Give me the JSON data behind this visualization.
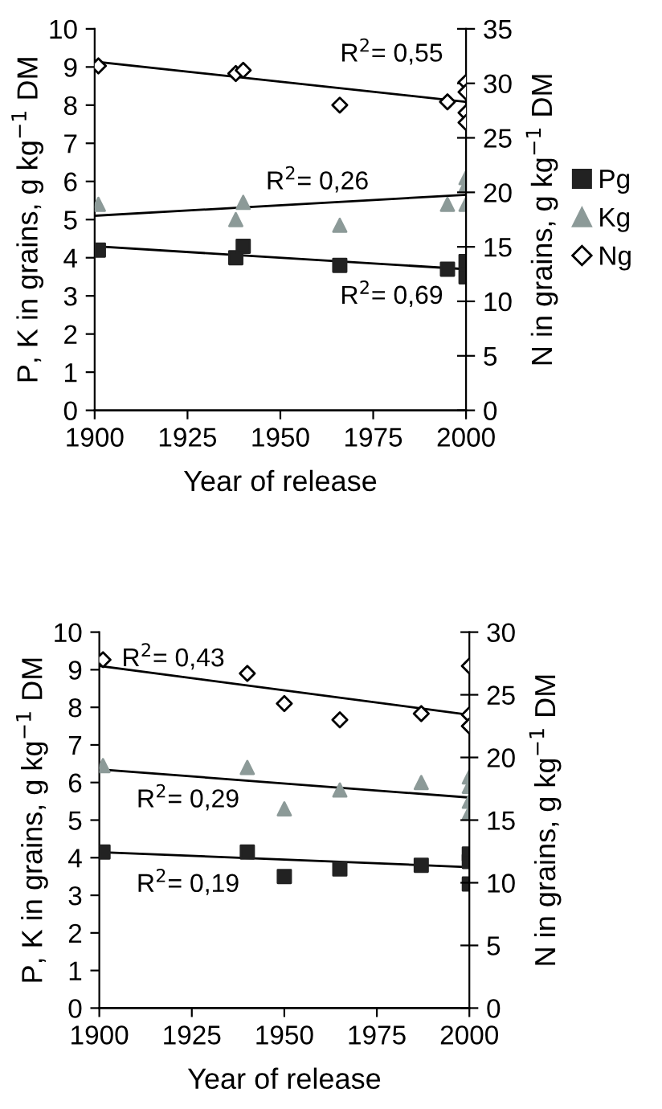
{
  "chart_data": [
    {
      "type": "scatter",
      "xlabel": "Year of release",
      "ylabel": "P, K in grains, g kg$^{−1}$ DM",
      "y2label": "N in grains, g kg$^{−1}$ DM",
      "xlim": [
        1900,
        2000
      ],
      "xticks": [
        1900,
        1925,
        1950,
        1975,
        2000
      ],
      "ylim": [
        0,
        10
      ],
      "yticks": [
        0,
        1,
        2,
        3,
        4,
        5,
        6,
        7,
        8,
        9,
        10
      ],
      "y2lim": [
        0,
        35
      ],
      "y2ticks": [
        0,
        5,
        10,
        15,
        20,
        25,
        30,
        35
      ],
      "grid": false,
      "legend": "right",
      "series": [
        {
          "name": "Pg",
          "color": "#222222",
          "marker": "square",
          "x": [
            1901,
            1938,
            1940,
            1966,
            1995,
            2000,
            2000
          ],
          "values": [
            4.2,
            4.0,
            4.3,
            3.8,
            3.7,
            3.9,
            3.5
          ]
        },
        {
          "name": "Kg",
          "color": "#8c9a98",
          "marker": "triangle",
          "x": [
            1901,
            1938,
            1940,
            1966,
            1995,
            2000,
            2000,
            2000
          ],
          "values": [
            5.4,
            5.0,
            5.45,
            4.85,
            5.4,
            6.1,
            5.9,
            5.4
          ]
        },
        {
          "name": "Ng",
          "color": "#000000",
          "marker": "diamond",
          "axis": "y2",
          "x": [
            1901,
            1938,
            1940,
            1966,
            1995,
            2000,
            2000,
            2000,
            2000
          ],
          "values": [
            31.6,
            30.9,
            31.2,
            28.0,
            28.3,
            30.1,
            29.2,
            27.3,
            26.4
          ]
        },
        {
          "type": "line",
          "color": "#000000",
          "marker": "none",
          "x": [
            1900,
            2000
          ],
          "values": [
            4.3,
            3.7
          ]
        },
        {
          "type": "line",
          "color": "#000000",
          "marker": "none",
          "x": [
            1900,
            2000
          ],
          "values": [
            5.1,
            5.65
          ]
        },
        {
          "type": "line",
          "color": "#000000",
          "marker": "none",
          "axis": "y2",
          "x": [
            1900,
            2000
          ],
          "values": [
            32.0,
            28.3
          ]
        }
      ],
      "annotations": [
        "R$^{2}$= 0,55",
        "R$^{2}$= 0,26",
        "R$^{2}$= 0,69"
      ]
    },
    {
      "type": "scatter",
      "xlabel": "Year of release",
      "ylabel": "P, K in grains, g kg$^{−1}$ DM",
      "y2label": "N in grains, g kg$^{−1}$ DM",
      "xlim": [
        1900,
        2000
      ],
      "xticks": [
        1900,
        1925,
        1950,
        1975,
        2000
      ],
      "ylim": [
        0,
        10
      ],
      "yticks": [
        0,
        1,
        2,
        3,
        4,
        5,
        6,
        7,
        8,
        9,
        10
      ],
      "y2lim": [
        0,
        30
      ],
      "y2ticks": [
        0,
        5,
        10,
        15,
        20,
        25,
        30
      ],
      "grid": false,
      "series": [
        {
          "color": "#222222",
          "marker": "square",
          "x": [
            1901,
            1940,
            1950,
            1965,
            1987,
            2000,
            2000,
            2000
          ],
          "values": [
            4.15,
            4.15,
            3.5,
            3.7,
            3.8,
            4.1,
            3.9,
            3.3
          ]
        },
        {
          "color": "#8c9a98",
          "marker": "triangle",
          "x": [
            1901,
            1940,
            1950,
            1965,
            1987,
            2000,
            2000,
            2000,
            2000
          ],
          "values": [
            6.45,
            6.4,
            5.3,
            5.8,
            6.0,
            6.15,
            5.9,
            5.5,
            5.2
          ]
        },
        {
          "color": "#000000",
          "marker": "diamond",
          "axis": "y2",
          "x": [
            1901,
            1940,
            1950,
            1965,
            1987,
            2000,
            2000,
            2000
          ],
          "values": [
            27.8,
            26.7,
            24.3,
            23.0,
            23.5,
            27.3,
            23.4,
            22.5
          ]
        },
        {
          "type": "line",
          "color": "#000000",
          "marker": "none",
          "x": [
            1900,
            2000
          ],
          "values": [
            4.15,
            3.75
          ]
        },
        {
          "type": "line",
          "color": "#000000",
          "marker": "none",
          "x": [
            1900,
            2000
          ],
          "values": [
            6.35,
            5.6
          ]
        },
        {
          "type": "line",
          "color": "#000000",
          "marker": "none",
          "axis": "y2",
          "x": [
            1900,
            2000
          ],
          "values": [
            27.3,
            23.4
          ]
        }
      ],
      "annotations": [
        "R$^{2}$= 0,43",
        "R$^{2}$= 0,29",
        "R$^{2}$= 0,19"
      ]
    }
  ]
}
